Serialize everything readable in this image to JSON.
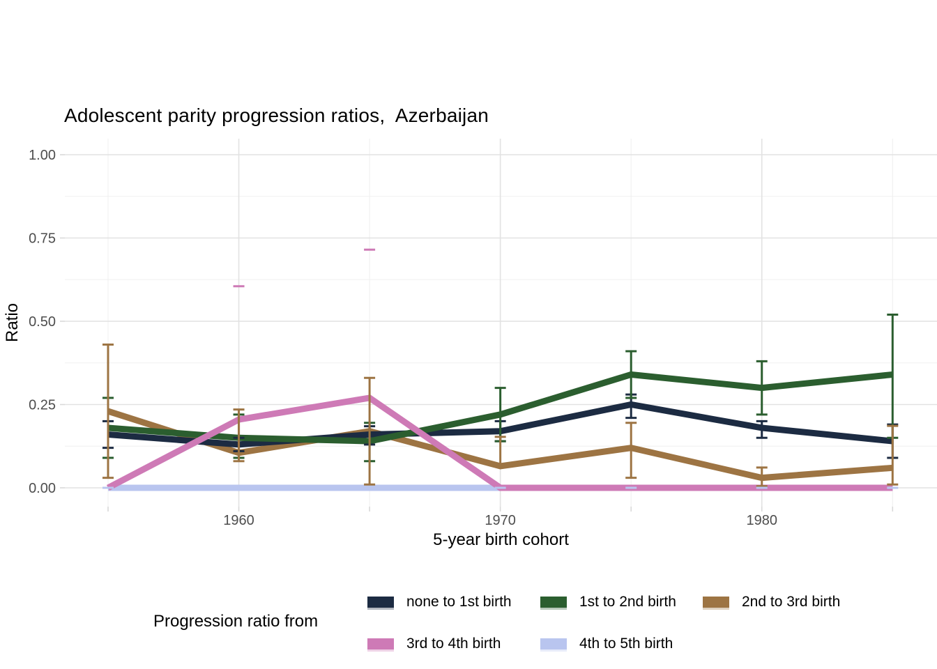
{
  "title": "Adolescent parity progression ratios,  Azerbaijan",
  "axes": {
    "x_label": "5-year birth cohort",
    "y_label": "Ratio",
    "x_ticks": [
      "1960",
      "1970",
      "1980"
    ],
    "y_ticks": [
      "0.00",
      "0.25",
      "0.50",
      "0.75",
      "1.00"
    ]
  },
  "legend": {
    "title": "Progression ratio from",
    "items": [
      {
        "label": "none to 1st birth",
        "color": "#1c2b42"
      },
      {
        "label": "1st to 2nd birth",
        "color": "#2b5e2f"
      },
      {
        "label": "2nd to 3rd birth",
        "color": "#9d7443"
      },
      {
        "label": "3rd to 4th birth",
        "color": "#ce7ab6"
      },
      {
        "label": "4th to 5th birth",
        "color": "#b9c5ef"
      }
    ]
  },
  "chart_data": {
    "type": "line",
    "title": "Adolescent parity progression ratios,  Azerbaijan",
    "xlabel": "5-year birth cohort",
    "ylabel": "Ratio",
    "ylim": [
      0,
      1
    ],
    "grid": "major+minor",
    "legend_position": "bottom",
    "x": [
      1955,
      1960,
      1965,
      1970,
      1975,
      1980,
      1985
    ],
    "x_major_ticks": [
      1960,
      1970,
      1980
    ],
    "x_minor_ticks": [
      1955,
      1965,
      1975,
      1985
    ],
    "y_major_ticks": [
      0,
      0.25,
      0.5,
      0.75,
      1.0
    ],
    "y_minor_ticks": [
      0.125,
      0.375,
      0.625,
      0.875
    ],
    "series": [
      {
        "name": "none to 1st birth",
        "color": "#1c2b42",
        "values": [
          0.16,
          0.13,
          0.16,
          0.17,
          0.25,
          0.18,
          0.14
        ],
        "ci_lo": [
          0.12,
          0.11,
          0.13,
          0.14,
          0.21,
          0.15,
          0.09
        ],
        "ci_hi": [
          0.2,
          0.15,
          0.185,
          0.2,
          0.28,
          0.2,
          0.19
        ]
      },
      {
        "name": "1st to 2nd birth",
        "color": "#2b5e2f",
        "values": [
          0.18,
          0.15,
          0.14,
          0.22,
          0.34,
          0.3,
          0.34
        ],
        "ci_lo": [
          0.09,
          0.09,
          0.08,
          0.14,
          0.27,
          0.22,
          0.15
        ],
        "ci_hi": [
          0.27,
          0.22,
          0.195,
          0.3,
          0.41,
          0.38,
          0.52
        ]
      },
      {
        "name": "2nd to 3rd birth",
        "color": "#9d7443",
        "values": [
          0.23,
          0.105,
          0.17,
          0.065,
          0.12,
          0.03,
          0.06
        ],
        "ci_lo": [
          0.03,
          0.08,
          0.01,
          0.065,
          0.03,
          0.005,
          0.01
        ],
        "ci_hi": [
          0.43,
          0.235,
          0.33,
          0.153,
          0.195,
          0.061,
          0.186
        ]
      },
      {
        "name": "3rd to 4th birth",
        "color": "#ce7ab6",
        "values": [
          0,
          0.205,
          0.27,
          0,
          0,
          0,
          0
        ],
        "ci_lo": [
          null,
          null,
          null,
          null,
          null,
          null,
          null
        ],
        "ci_hi": [
          null,
          0.605,
          0.715,
          null,
          null,
          null,
          null
        ]
      },
      {
        "name": "4th to 5th birth",
        "color": "#b9c5ef",
        "values": [
          0,
          0,
          0,
          0,
          0,
          0,
          0
        ],
        "ci_lo": [
          0,
          0,
          0,
          0,
          0,
          0,
          0
        ],
        "ci_hi": [
          0,
          0,
          0,
          0,
          0,
          0,
          0
        ]
      }
    ],
    "line_draw_order": [
      2,
      0,
      1,
      4,
      3
    ]
  },
  "colors": {
    "grid_major": "#e2e2e2",
    "grid_minor": "#f0f0f0",
    "tick": "#d9d9d9",
    "tick_label": "#4d4d4d"
  }
}
